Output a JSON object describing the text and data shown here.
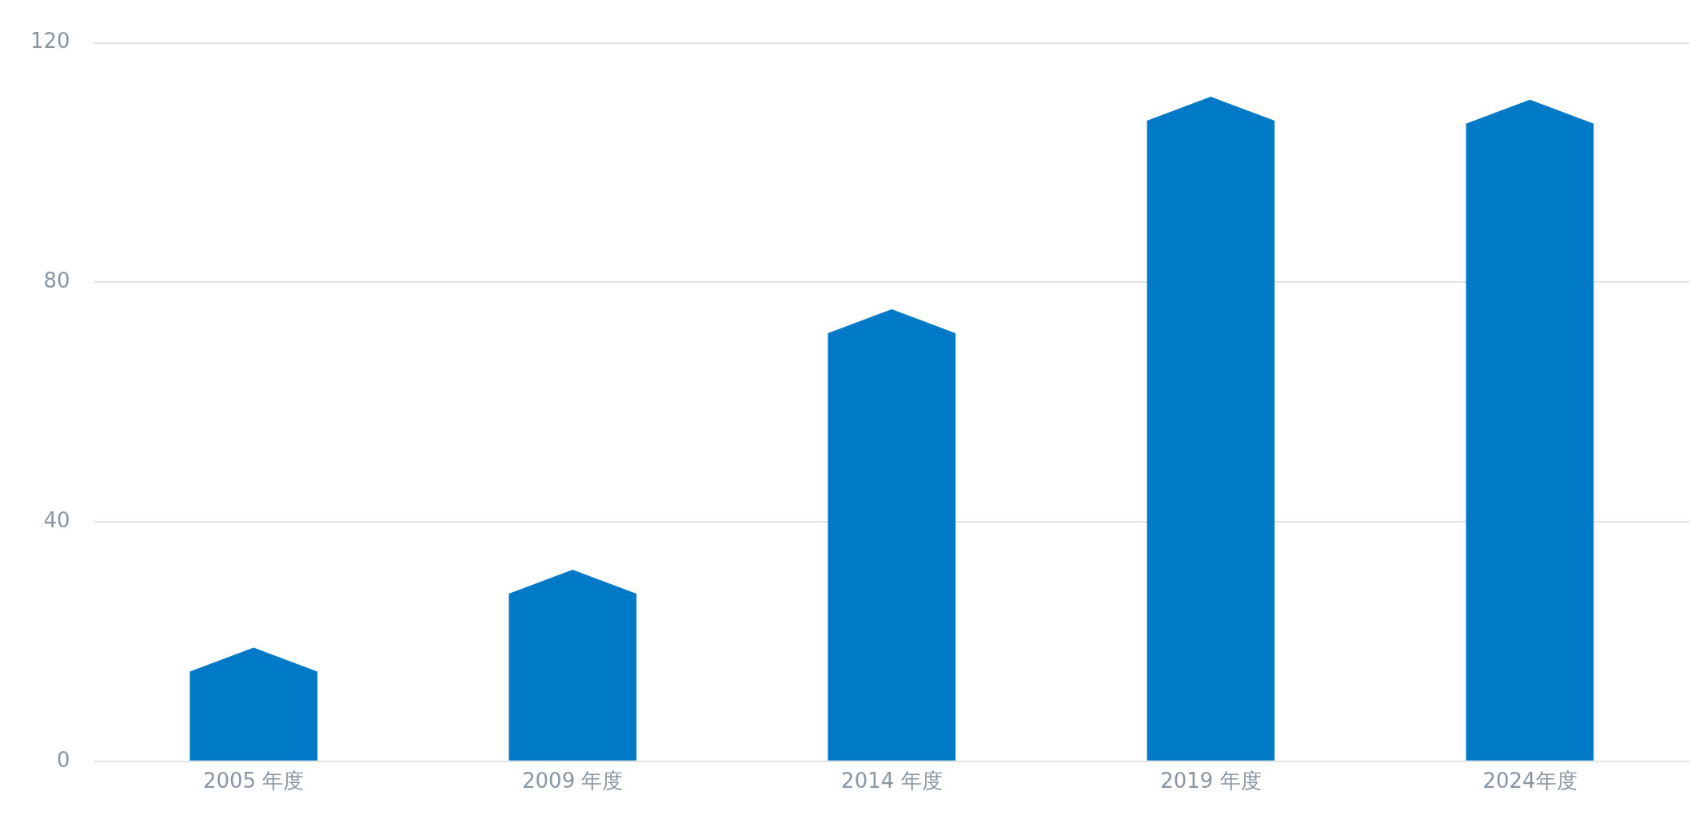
{
  "chart_data": {
    "type": "bar",
    "categories": [
      "2005 年度",
      "2009 年度",
      "2014 年度",
      "2019 年度",
      "2024年度"
    ],
    "values": [
      19,
      32,
      75.5,
      111,
      110.5
    ],
    "color": "#0079c6",
    "ylim": [
      0,
      120
    ],
    "yticks": [
      0,
      40,
      80,
      120
    ],
    "grid": "y",
    "legend": false
  }
}
